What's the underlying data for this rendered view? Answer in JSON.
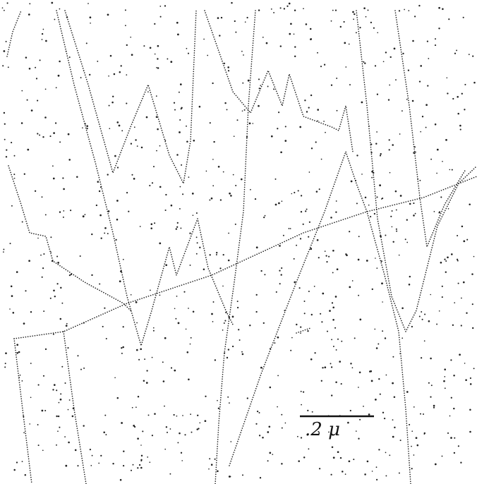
{
  "scale_bar": {
    "label": ".2 μ"
  }
}
